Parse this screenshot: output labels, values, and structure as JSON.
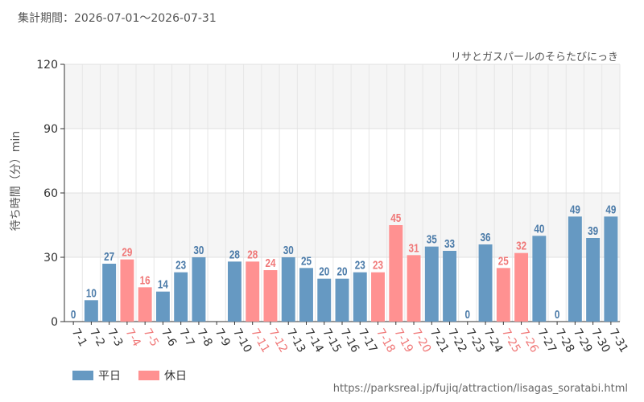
{
  "header": {
    "period": "集計期間：2026-07-01～2026-07-31",
    "attraction": "リサとガスパールのそらたびにっき"
  },
  "chart_data": {
    "type": "bar",
    "ylabel": "待ち時間（分）min",
    "ylim": [
      0,
      120
    ],
    "yticks": [
      0,
      30,
      60,
      90,
      120
    ],
    "grid": true,
    "categories": [
      "7-1",
      "7-2",
      "7-3",
      "7-4",
      "7-5",
      "7-6",
      "7-7",
      "7-8",
      "7-9",
      "7-10",
      "7-11",
      "7-12",
      "7-13",
      "7-14",
      "7-15",
      "7-16",
      "7-17",
      "7-18",
      "7-19",
      "7-20",
      "7-21",
      "7-22",
      "7-23",
      "7-24",
      "7-25",
      "7-26",
      "7-27",
      "7-28",
      "7-29",
      "7-30",
      "7-31"
    ],
    "values": [
      0,
      10,
      27,
      29,
      16,
      14,
      23,
      30,
      null,
      28,
      28,
      24,
      30,
      25,
      20,
      20,
      23,
      23,
      45,
      31,
      35,
      33,
      0,
      36,
      25,
      32,
      40,
      0,
      49,
      39,
      49
    ],
    "day_type": [
      "weekday",
      "weekday",
      "weekday",
      "holiday",
      "holiday",
      "weekday",
      "weekday",
      "weekday",
      "weekday",
      "weekday",
      "holiday",
      "holiday",
      "weekday",
      "weekday",
      "weekday",
      "weekday",
      "weekday",
      "holiday",
      "holiday",
      "holiday",
      "weekday",
      "weekday",
      "weekday",
      "weekday",
      "holiday",
      "holiday",
      "weekday",
      "weekday",
      "weekday",
      "weekday",
      "weekday"
    ],
    "series": [
      {
        "name": "平日",
        "color": "#6699c2",
        "label_color": "#4a7aa8"
      },
      {
        "name": "休日",
        "color": "#ff9191",
        "label_color": "#f07878"
      }
    ],
    "legend_position": "bottom-left"
  },
  "source": "https://parksreal.jp/fujiq/attraction/lisagas_soratabi.html"
}
